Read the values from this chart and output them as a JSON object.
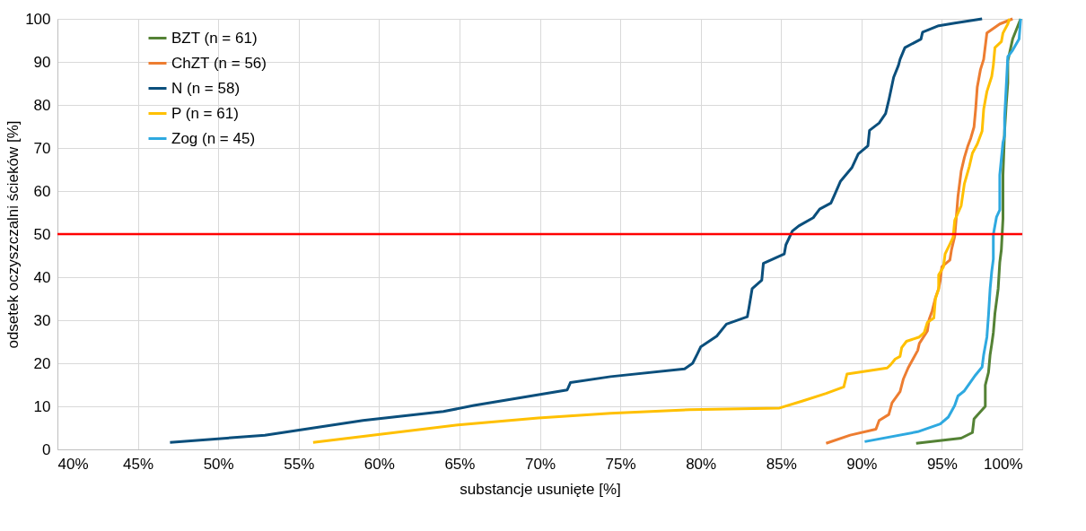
{
  "chart_data": {
    "type": "line",
    "xlabel": "substancje usunięte [%]",
    "ylabel": "odsetek oczyszczalni ścieków [%]",
    "xlim": [
      40,
      100
    ],
    "xticks": [
      {
        "value": 40,
        "label": "40%"
      },
      {
        "value": 45,
        "label": "45%"
      },
      {
        "value": 50,
        "label": "50%"
      },
      {
        "value": 55,
        "label": "55%"
      },
      {
        "value": 60,
        "label": "60%"
      },
      {
        "value": 65,
        "label": "65%"
      },
      {
        "value": 70,
        "label": "70%"
      },
      {
        "value": 75,
        "label": "75%"
      },
      {
        "value": 80,
        "label": "80%"
      },
      {
        "value": 85,
        "label": "85%"
      },
      {
        "value": 90,
        "label": "90%"
      },
      {
        "value": 95,
        "label": "95%"
      },
      {
        "value": 100,
        "label": "100%"
      }
    ],
    "ylim": [
      0,
      100
    ],
    "yticks": [
      0,
      10,
      20,
      30,
      40,
      50,
      60,
      70,
      80,
      90,
      100
    ],
    "grid": true,
    "legend": "top left",
    "line_style": "solid",
    "marker": "none",
    "ref_lines": [
      {
        "axis": "y",
        "value": 50,
        "color": "#ff0000"
      }
    ],
    "series": [
      {
        "name": "BZT (n = 61)",
        "color": "#548235",
        "x": [
          93.4,
          96.2,
          96.9,
          97.0,
          97.7,
          97.7,
          97.9,
          98.0,
          98.1,
          98.2,
          98.3,
          98.5,
          98.6,
          98.7,
          98.8,
          98.8,
          98.9,
          99.0,
          99.1,
          99.1,
          99.4,
          99.9
        ],
        "values": [
          1.4,
          2.6,
          3.9,
          7.1,
          10.0,
          14.9,
          17.9,
          22.0,
          24.4,
          27.1,
          31.6,
          37.3,
          43.4,
          46.4,
          53.6,
          63.7,
          73.9,
          80.0,
          85.1,
          90.2,
          95.3,
          100
        ]
      },
      {
        "name": "ChZT (n = 56)",
        "color": "#ed7d31",
        "x": [
          87.8,
          89.3,
          90.9,
          91.1,
          91.7,
          91.9,
          92.4,
          92.6,
          92.9,
          93.5,
          93.6,
          94.1,
          94.2,
          94.4,
          94.6,
          94.8,
          94.9,
          95.0,
          95.5,
          95.6,
          95.8,
          95.9,
          96.0,
          96.2,
          96.4,
          96.6,
          96.8,
          97.0,
          97.1,
          97.2,
          97.4,
          97.6,
          97.8,
          98.6,
          99.4
        ],
        "values": [
          1.4,
          3.3,
          4.7,
          6.7,
          8.1,
          10.8,
          13.4,
          16.3,
          18.9,
          23.0,
          24.6,
          27.5,
          30.1,
          32.2,
          35.2,
          37.3,
          39.3,
          42.4,
          44.0,
          46.4,
          49.5,
          54.0,
          58.7,
          64.6,
          67.8,
          70.3,
          72.3,
          74.9,
          79.0,
          84.1,
          88.2,
          90.6,
          96.7,
          98.8,
          100
        ]
      },
      {
        "name": "N (n = 58)",
        "color": "#0b4f7c",
        "x": [
          47.0,
          52.9,
          59.0,
          64.0,
          65.9,
          71.7,
          71.9,
          74.4,
          79.0,
          79.5,
          79.8,
          80.0,
          81.0,
          81.6,
          82.9,
          83.0,
          83.2,
          83.8,
          83.9,
          85.2,
          85.3,
          85.7,
          86.1,
          87.0,
          87.4,
          88.1,
          88.3,
          88.7,
          89.4,
          89.8,
          90.4,
          90.5,
          91.1,
          91.5,
          91.7,
          92.0,
          92.3,
          92.4,
          92.7,
          93.7,
          93.8,
          94.8,
          95.8,
          97.5
        ],
        "values": [
          1.6,
          3.3,
          6.7,
          8.8,
          10.2,
          13.8,
          15.5,
          16.9,
          18.7,
          20.0,
          22.2,
          23.8,
          26.3,
          29.1,
          30.8,
          32.8,
          37.3,
          39.3,
          43.2,
          45.4,
          47.5,
          50.7,
          51.9,
          53.8,
          55.8,
          57.2,
          58.9,
          62.3,
          65.4,
          68.6,
          70.5,
          74.1,
          75.8,
          78.0,
          81.1,
          86.4,
          89.2,
          90.6,
          93.3,
          95.3,
          96.9,
          98.4,
          99.0,
          100
        ]
      },
      {
        "name": "P (n = 61)",
        "color": "#ffc000",
        "x": [
          55.9,
          64.9,
          69.9,
          74.4,
          79.3,
          84.9,
          86.3,
          87.8,
          88.9,
          89.1,
          91.6,
          91.8,
          92.1,
          92.4,
          92.5,
          92.8,
          93.6,
          93.9,
          94.1,
          94.5,
          94.6,
          94.8,
          94.8,
          95.1,
          95.2,
          95.5,
          95.7,
          95.8,
          96.2,
          96.4,
          96.7,
          96.9,
          97.2,
          97.5,
          97.6,
          97.8,
          98.1,
          98.2,
          98.3,
          98.7,
          98.8,
          99.1,
          99.2
        ],
        "values": [
          1.6,
          5.7,
          7.3,
          8.4,
          9.2,
          9.6,
          11.2,
          13.0,
          14.5,
          17.5,
          18.9,
          19.6,
          21.0,
          21.6,
          23.6,
          25.1,
          26.1,
          27.1,
          29.5,
          30.5,
          35.0,
          37.3,
          40.5,
          42.4,
          45.4,
          47.7,
          49.3,
          53.2,
          56.6,
          61.7,
          65.6,
          68.8,
          70.9,
          73.9,
          79.0,
          83.1,
          86.6,
          89.2,
          93.3,
          94.7,
          96.7,
          98.8,
          100
        ]
      },
      {
        "name": "Zog (n = 45)",
        "color": "#2ea9e0",
        "x": [
          90.2,
          93.5,
          94.9,
          95.4,
          95.8,
          96.0,
          96.4,
          97.1,
          97.5,
          97.6,
          97.8,
          97.9,
          98.0,
          98.1,
          98.2,
          98.2,
          98.4,
          98.6,
          98.6,
          98.8,
          98.9,
          98.9,
          99.0,
          99.1,
          99.4,
          99.8,
          99.9
        ],
        "values": [
          1.8,
          4.1,
          5.9,
          7.5,
          10.2,
          12.4,
          13.6,
          17.3,
          19.1,
          22.0,
          26.1,
          31.2,
          37.3,
          41.3,
          44.2,
          49.9,
          54.0,
          55.6,
          63.7,
          71.3,
          72.9,
          77.0,
          84.1,
          91.2,
          92.7,
          95.3,
          100
        ]
      }
    ]
  }
}
